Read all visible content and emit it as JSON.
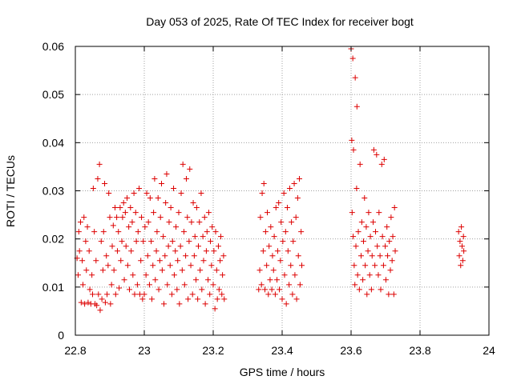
{
  "chart_data": {
    "type": "scatter",
    "title": "Day 053 of 2025, Rate Of TEC Index for receiver bogt",
    "xlabel": "GPS time / hours",
    "ylabel": "ROTI / TECUs",
    "xlim": [
      22.8,
      24
    ],
    "ylim": [
      0,
      0.06
    ],
    "x_ticks": [
      "22.8",
      "23",
      "23.2",
      "23.4",
      "23.6",
      "23.8",
      "24"
    ],
    "y_ticks": [
      "0",
      "0.01",
      "0.02",
      "0.03",
      "0.04",
      "0.05",
      "0.06"
    ],
    "grid": true,
    "marker": "plus",
    "color": "#dd0000",
    "series": [
      {
        "points": [
          [
            22.805,
            0.016
          ],
          [
            22.808,
            0.0125
          ],
          [
            22.81,
            0.0215
          ],
          [
            22.812,
            0.0175
          ],
          [
            22.815,
            0.0235
          ],
          [
            22.817,
            0.0068
          ],
          [
            22.82,
            0.0155
          ],
          [
            22.822,
            0.0105
          ],
          [
            22.825,
            0.0245
          ],
          [
            22.827,
            0.0065
          ],
          [
            22.83,
            0.0195
          ],
          [
            22.832,
            0.0135
          ],
          [
            22.835,
            0.0225
          ],
          [
            22.837,
            0.0068
          ],
          [
            22.84,
            0.0175
          ],
          [
            22.842,
            0.0095
          ],
          [
            22.845,
            0.0065
          ],
          [
            22.848,
            0.0125
          ],
          [
            22.85,
            0.0085
          ],
          [
            22.852,
            0.0305
          ],
          [
            22.855,
            0.0215
          ],
          [
            22.857,
            0.0065
          ],
          [
            22.86,
            0.0155
          ],
          [
            22.862,
            0.0062
          ],
          [
            22.865,
            0.0325
          ],
          [
            22.867,
            0.0085
          ],
          [
            22.87,
            0.0355
          ],
          [
            22.872,
            0.0052
          ],
          [
            22.875,
            0.0195
          ],
          [
            22.877,
            0.0075
          ],
          [
            22.88,
            0.0135
          ],
          [
            22.882,
            0.0215
          ],
          [
            22.885,
            0.0315
          ],
          [
            22.887,
            0.0068
          ],
          [
            22.89,
            0.0165
          ],
          [
            22.892,
            0.0085
          ],
          [
            22.895,
            0.0145
          ],
          [
            22.897,
            0.0295
          ],
          [
            22.9,
            0.0245
          ],
          [
            22.902,
            0.0065
          ],
          [
            22.905,
            0.0105
          ],
          [
            22.907,
            0.0185
          ],
          [
            22.91,
            0.0228
          ],
          [
            22.912,
            0.0135
          ],
          [
            22.915,
            0.0265
          ],
          [
            22.917,
            0.0085
          ],
          [
            22.92,
            0.0245
          ],
          [
            22.922,
            0.0175
          ],
          [
            22.925,
            0.0215
          ],
          [
            22.927,
            0.0098
          ],
          [
            22.93,
            0.0265
          ],
          [
            22.932,
            0.0155
          ],
          [
            22.935,
            0.0195
          ],
          [
            22.937,
            0.0245
          ],
          [
            22.94,
            0.0275
          ],
          [
            22.942,
            0.0115
          ],
          [
            22.945,
            0.0255
          ],
          [
            22.947,
            0.0185
          ],
          [
            22.95,
            0.0285
          ],
          [
            22.952,
            0.0145
          ],
          [
            22.955,
            0.0225
          ],
          [
            22.957,
            0.0095
          ],
          [
            22.96,
            0.0265
          ],
          [
            22.962,
            0.0175
          ],
          [
            22.965,
            0.0235
          ],
          [
            22.967,
            0.0125
          ],
          [
            22.97,
            0.0295
          ],
          [
            22.972,
            0.0085
          ],
          [
            22.975,
            0.0255
          ],
          [
            22.977,
            0.0195
          ],
          [
            22.98,
            0.0105
          ],
          [
            22.982,
            0.0215
          ],
          [
            22.985,
            0.0305
          ],
          [
            22.987,
            0.0085
          ],
          [
            22.99,
            0.0155
          ],
          [
            22.992,
            0.0245
          ],
          [
            22.995,
            0.0075
          ],
          [
            22.997,
            0.0195
          ],
          [
            23.0,
            0.0085
          ],
          [
            23.002,
            0.0225
          ],
          [
            23.005,
            0.0125
          ],
          [
            23.007,
            0.0295
          ],
          [
            23.01,
            0.0165
          ],
          [
            23.012,
            0.0235
          ],
          [
            23.015,
            0.0105
          ],
          [
            23.017,
            0.0285
          ],
          [
            23.02,
            0.0195
          ],
          [
            23.022,
            0.0075
          ],
          [
            23.025,
            0.0145
          ],
          [
            23.027,
            0.0255
          ],
          [
            23.03,
            0.0325
          ],
          [
            23.032,
            0.0115
          ],
          [
            23.035,
            0.0175
          ],
          [
            23.037,
            0.0215
          ],
          [
            23.04,
            0.0285
          ],
          [
            23.042,
            0.0095
          ],
          [
            23.045,
            0.0155
          ],
          [
            23.047,
            0.0245
          ],
          [
            23.05,
            0.0315
          ],
          [
            23.052,
            0.0135
          ],
          [
            23.055,
            0.0205
          ],
          [
            23.057,
            0.0065
          ],
          [
            23.06,
            0.0165
          ],
          [
            23.062,
            0.0275
          ],
          [
            23.065,
            0.0335
          ],
          [
            23.067,
            0.0105
          ],
          [
            23.07,
            0.0185
          ],
          [
            23.072,
            0.0235
          ],
          [
            23.075,
            0.0145
          ],
          [
            23.077,
            0.0265
          ],
          [
            23.08,
            0.0085
          ],
          [
            23.082,
            0.0195
          ],
          [
            23.085,
            0.0305
          ],
          [
            23.087,
            0.0125
          ],
          [
            23.09,
            0.0175
          ],
          [
            23.092,
            0.0225
          ],
          [
            23.095,
            0.0095
          ],
          [
            23.097,
            0.0155
          ],
          [
            23.1,
            0.0255
          ],
          [
            23.102,
            0.0065
          ],
          [
            23.105,
            0.0185
          ],
          [
            23.107,
            0.0295
          ],
          [
            23.11,
            0.0135
          ],
          [
            23.112,
            0.0355
          ],
          [
            23.115,
            0.0215
          ],
          [
            23.117,
            0.0105
          ],
          [
            23.12,
            0.0165
          ],
          [
            23.122,
            0.0325
          ],
          [
            23.125,
            0.0245
          ],
          [
            23.127,
            0.0075
          ],
          [
            23.13,
            0.0195
          ],
          [
            23.132,
            0.0345
          ],
          [
            23.135,
            0.0145
          ],
          [
            23.137,
            0.0235
          ],
          [
            23.14,
            0.0085
          ],
          [
            23.142,
            0.0275
          ],
          [
            23.145,
            0.0165
          ],
          [
            23.147,
            0.0205
          ],
          [
            23.15,
            0.0115
          ],
          [
            23.152,
            0.0265
          ],
          [
            23.155,
            0.0075
          ],
          [
            23.157,
            0.0185
          ],
          [
            23.16,
            0.0235
          ],
          [
            23.162,
            0.0135
          ],
          [
            23.165,
            0.0295
          ],
          [
            23.167,
            0.0095
          ],
          [
            23.17,
            0.0205
          ],
          [
            23.172,
            0.0155
          ],
          [
            23.175,
            0.0245
          ],
          [
            23.177,
            0.0065
          ],
          [
            23.18,
            0.0175
          ],
          [
            23.182,
            0.0215
          ],
          [
            23.185,
            0.0115
          ],
          [
            23.187,
            0.0255
          ],
          [
            23.19,
            0.0085
          ],
          [
            23.192,
            0.0195
          ],
          [
            23.195,
            0.0145
          ],
          [
            23.197,
            0.0225
          ],
          [
            23.2,
            0.0105
          ],
          [
            23.202,
            0.0175
          ],
          [
            23.205,
            0.0055
          ],
          [
            23.207,
            0.0215
          ],
          [
            23.21,
            0.0135
          ],
          [
            23.212,
            0.0075
          ],
          [
            23.215,
            0.0185
          ],
          [
            23.217,
            0.0095
          ],
          [
            23.22,
            0.0155
          ],
          [
            23.222,
            0.0205
          ],
          [
            23.225,
            0.0085
          ],
          [
            23.227,
            0.0125
          ],
          [
            23.23,
            0.0165
          ],
          [
            23.232,
            0.0075
          ],
          [
            23.332,
            0.0095
          ],
          [
            23.335,
            0.0135
          ],
          [
            23.337,
            0.0245
          ],
          [
            23.34,
            0.0105
          ],
          [
            23.342,
            0.0295
          ],
          [
            23.345,
            0.0175
          ],
          [
            23.347,
            0.0315
          ],
          [
            23.35,
            0.0095
          ],
          [
            23.352,
            0.0215
          ],
          [
            23.355,
            0.0145
          ],
          [
            23.357,
            0.0255
          ],
          [
            23.36,
            0.0085
          ],
          [
            23.362,
            0.0185
          ],
          [
            23.365,
            0.0115
          ],
          [
            23.367,
            0.0225
          ],
          [
            23.37,
            0.0095
          ],
          [
            23.372,
            0.0165
          ],
          [
            23.375,
            0.0135
          ],
          [
            23.377,
            0.0205
          ],
          [
            23.38,
            0.0085
          ],
          [
            23.382,
            0.0265
          ],
          [
            23.385,
            0.0115
          ],
          [
            23.387,
            0.0175
          ],
          [
            23.39,
            0.0275
          ],
          [
            23.392,
            0.0095
          ],
          [
            23.395,
            0.0155
          ],
          [
            23.397,
            0.0235
          ],
          [
            23.4,
            0.0075
          ],
          [
            23.402,
            0.0195
          ],
          [
            23.405,
            0.0295
          ],
          [
            23.407,
            0.0125
          ],
          [
            23.41,
            0.0215
          ],
          [
            23.412,
            0.0065
          ],
          [
            23.415,
            0.0265
          ],
          [
            23.417,
            0.0175
          ],
          [
            23.42,
            0.0105
          ],
          [
            23.422,
            0.0305
          ],
          [
            23.425,
            0.0145
          ],
          [
            23.427,
            0.0235
          ],
          [
            23.43,
            0.0085
          ],
          [
            23.432,
            0.0195
          ],
          [
            23.435,
            0.0315
          ],
          [
            23.437,
            0.0125
          ],
          [
            23.44,
            0.0245
          ],
          [
            23.442,
            0.0075
          ],
          [
            23.445,
            0.0285
          ],
          [
            23.447,
            0.0165
          ],
          [
            23.45,
            0.0325
          ],
          [
            23.452,
            0.0105
          ],
          [
            23.455,
            0.0215
          ],
          [
            23.457,
            0.0145
          ],
          [
            23.6,
            0.0595
          ],
          [
            23.605,
            0.0575
          ],
          [
            23.602,
            0.0405
          ],
          [
            23.607,
            0.0385
          ],
          [
            23.612,
            0.0535
          ],
          [
            23.617,
            0.0475
          ],
          [
            23.603,
            0.0255
          ],
          [
            23.606,
            0.0205
          ],
          [
            23.609,
            0.0145
          ],
          [
            23.611,
            0.0105
          ],
          [
            23.614,
            0.0185
          ],
          [
            23.616,
            0.0305
          ],
          [
            23.619,
            0.0125
          ],
          [
            23.621,
            0.0215
          ],
          [
            23.624,
            0.0095
          ],
          [
            23.626,
            0.0355
          ],
          [
            23.629,
            0.0165
          ],
          [
            23.631,
            0.0235
          ],
          [
            23.634,
            0.0115
          ],
          [
            23.636,
            0.0195
          ],
          [
            23.639,
            0.0285
          ],
          [
            23.641,
            0.0145
          ],
          [
            23.644,
            0.0225
          ],
          [
            23.646,
            0.0085
          ],
          [
            23.649,
            0.0175
          ],
          [
            23.651,
            0.0255
          ],
          [
            23.654,
            0.0125
          ],
          [
            23.656,
            0.0205
          ],
          [
            23.659,
            0.0095
          ],
          [
            23.661,
            0.0165
          ],
          [
            23.664,
            0.0235
          ],
          [
            23.666,
            0.0385
          ],
          [
            23.669,
            0.0145
          ],
          [
            23.671,
            0.0215
          ],
          [
            23.674,
            0.0375
          ],
          [
            23.676,
            0.0185
          ],
          [
            23.679,
            0.0125
          ],
          [
            23.681,
            0.0255
          ],
          [
            23.684,
            0.0165
          ],
          [
            23.686,
            0.0095
          ],
          [
            23.689,
            0.0355
          ],
          [
            23.691,
            0.0205
          ],
          [
            23.694,
            0.0145
          ],
          [
            23.696,
            0.0365
          ],
          [
            23.699,
            0.0185
          ],
          [
            23.701,
            0.0115
          ],
          [
            23.704,
            0.0225
          ],
          [
            23.706,
            0.0165
          ],
          [
            23.709,
            0.0085
          ],
          [
            23.711,
            0.0195
          ],
          [
            23.714,
            0.0135
          ],
          [
            23.716,
            0.0245
          ],
          [
            23.719,
            0.0155
          ],
          [
            23.721,
            0.0205
          ],
          [
            23.724,
            0.0085
          ],
          [
            23.726,
            0.0265
          ],
          [
            23.728,
            0.0175
          ],
          [
            23.912,
            0.0215
          ],
          [
            23.914,
            0.0165
          ],
          [
            23.916,
            0.0195
          ],
          [
            23.918,
            0.0145
          ],
          [
            23.92,
            0.0225
          ],
          [
            23.922,
            0.0185
          ],
          [
            23.924,
            0.0155
          ],
          [
            23.926,
            0.0205
          ],
          [
            23.927,
            0.0175
          ]
        ]
      }
    ]
  }
}
